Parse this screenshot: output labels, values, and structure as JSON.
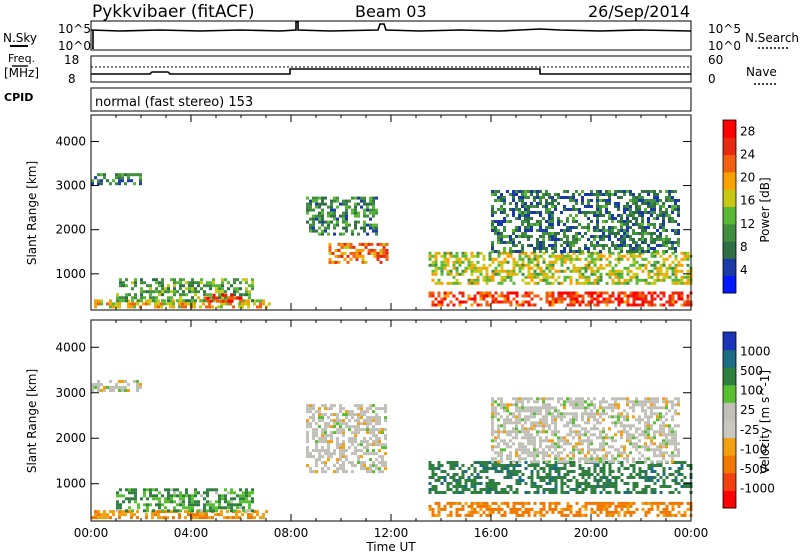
{
  "header": {
    "radar": "Pykkvibaer (fitACF)",
    "beam": "Beam 03",
    "date": "26/Sep/2014"
  },
  "panels": {
    "noise": {
      "left_label": "N.Sky",
      "left_ticks": [
        "10^5",
        "10^0"
      ],
      "right_ticks": [
        "10^5",
        "10^0"
      ],
      "right_label": "N.Search"
    },
    "freq": {
      "left_label_1": "Freq.",
      "left_label_2": "[MHz]",
      "left_ticks": [
        "18",
        "8"
      ],
      "right_ticks": [
        "60",
        "0"
      ],
      "right_label": "Nave"
    },
    "cpid": {
      "label": "CPID",
      "text": "normal (fast stereo) 153"
    }
  },
  "colors": {
    "power_scale": [
      "#0018ff",
      "#1a3aa8",
      "#2f6f46",
      "#3f8f3f",
      "#58b834",
      "#c8c814",
      "#f8a000",
      "#f06010",
      "#e82a10",
      "#ff0000"
    ],
    "velocity_scale": [
      "#1c34b8",
      "#1c6c84",
      "#2f7f3f",
      "#58c030",
      "#c0c0b8",
      "#c8c8c0",
      "#f0a010",
      "#f07800",
      "#f04010",
      "#ff0000"
    ]
  },
  "chart_data": [
    {
      "type": "heatmap",
      "panel": "power",
      "ylabel": "Slant Range [km]",
      "xlabel": "",
      "xlim": [
        0,
        24
      ],
      "ylim": [
        180,
        4600
      ],
      "x_ticks": [
        "00:00",
        "04:00",
        "08:00",
        "12:00",
        "16:00",
        "20:00",
        "00:00"
      ],
      "y_ticks": [
        "1000",
        "2000",
        "3000",
        "4000"
      ],
      "colorbar": {
        "label": "Power [dB]",
        "ticks": [
          "4",
          "8",
          "12",
          "16",
          "20",
          "24",
          "28"
        ],
        "range": [
          0,
          30
        ]
      },
      "regions": [
        {
          "t0": 0.0,
          "t1": 7.2,
          "r0": 250,
          "r1": 420,
          "value": 18
        },
        {
          "t0": 1.0,
          "t1": 6.5,
          "r0": 420,
          "r1": 900,
          "value": 12
        },
        {
          "t0": 0.0,
          "t1": 2.0,
          "r0": 3050,
          "r1": 3280,
          "value": 8
        },
        {
          "t0": 4.5,
          "t1": 6.0,
          "r0": 380,
          "r1": 550,
          "value": 26
        },
        {
          "t0": 8.6,
          "t1": 11.4,
          "r0": 1900,
          "r1": 2750,
          "value": 10
        },
        {
          "t0": 9.5,
          "t1": 11.8,
          "r0": 1250,
          "r1": 1700,
          "value": 22
        },
        {
          "t0": 13.5,
          "t1": 24.0,
          "r0": 300,
          "r1": 600,
          "value": 25
        },
        {
          "t0": 13.5,
          "t1": 24.0,
          "r0": 800,
          "r1": 1500,
          "value": 16
        },
        {
          "t0": 16.0,
          "t1": 23.5,
          "r0": 1500,
          "r1": 2900,
          "value": 8
        }
      ]
    },
    {
      "type": "heatmap",
      "panel": "velocity",
      "ylabel": "Slant Range [km]",
      "xlabel": "Time UT",
      "xlim": [
        0,
        24
      ],
      "ylim": [
        180,
        4600
      ],
      "x_ticks": [
        "00:00",
        "04:00",
        "08:00",
        "12:00",
        "16:00",
        "20:00",
        "00:00"
      ],
      "y_ticks": [
        "1000",
        "2000",
        "3000",
        "4000"
      ],
      "colorbar": {
        "label": "Velocity [m s^-1]",
        "ticks": [
          "1000",
          "500",
          "100",
          "25",
          "-25",
          "-100",
          "-500",
          "-1000"
        ]
      },
      "regions": [
        {
          "t0": 0.0,
          "t1": 7.2,
          "r0": 250,
          "r1": 420,
          "value": -100
        },
        {
          "t0": 1.0,
          "t1": 6.5,
          "r0": 420,
          "r1": 900,
          "value": 50
        },
        {
          "t0": 0.0,
          "t1": 2.0,
          "r0": 3050,
          "r1": 3280,
          "value": 0
        },
        {
          "t0": 8.6,
          "t1": 11.8,
          "r0": 1250,
          "r1": 2750,
          "value": 0
        },
        {
          "t0": 13.5,
          "t1": 24.0,
          "r0": 300,
          "r1": 600,
          "value": -120
        },
        {
          "t0": 13.5,
          "t1": 24.0,
          "r0": 800,
          "r1": 1500,
          "value": 80
        },
        {
          "t0": 16.0,
          "t1": 23.5,
          "r0": 1500,
          "r1": 2900,
          "value": 0
        }
      ]
    }
  ]
}
